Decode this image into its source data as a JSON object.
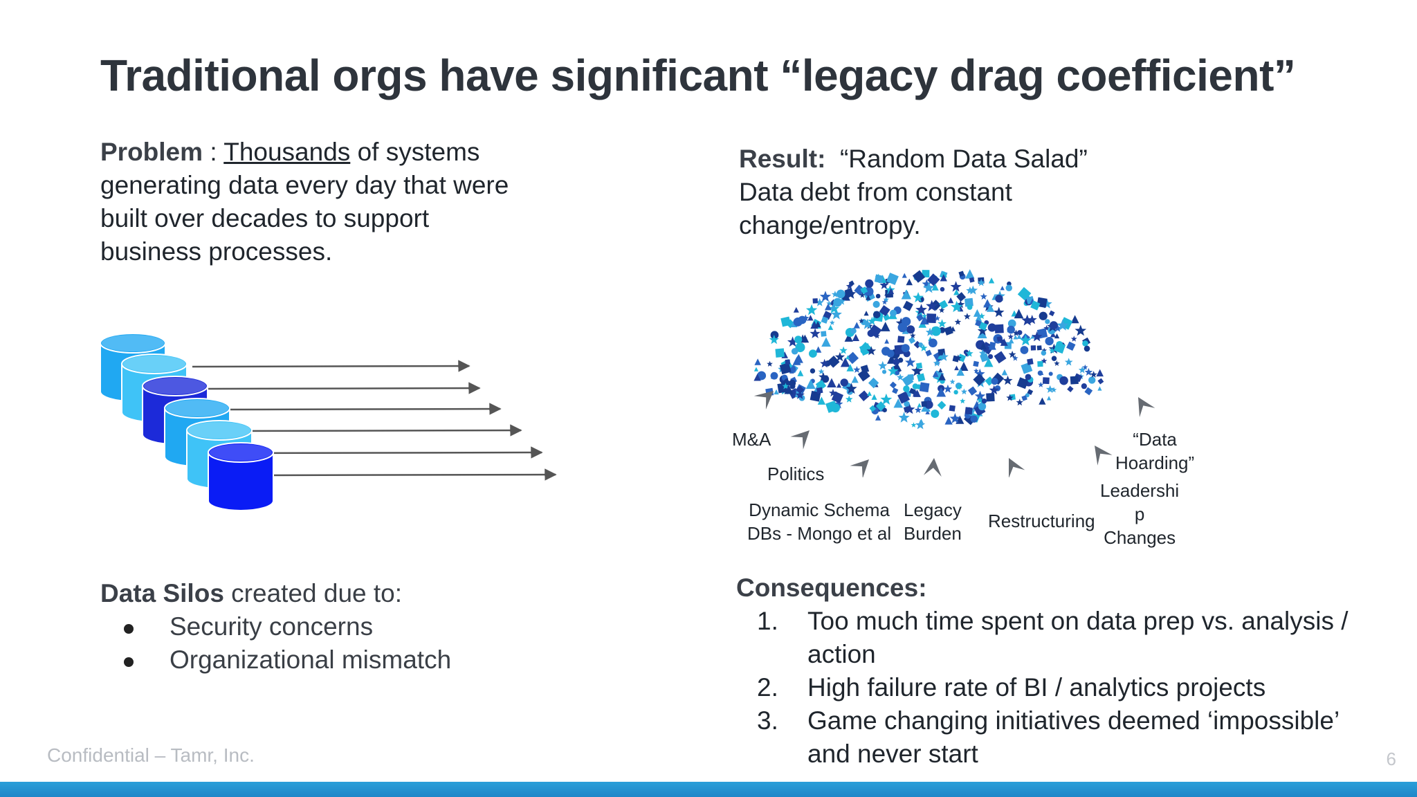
{
  "title": "Traditional orgs have significant “legacy drag coefficient”",
  "problem": {
    "label": "Problem",
    "sep": " : ",
    "highlight": "Thousands",
    "text": " of systems generating data every day that were built over decades to support business processes."
  },
  "result": {
    "label": "Result:",
    "quote": "“Random Data Salad”",
    "text": "Data debt from constant change/entropy."
  },
  "silos": {
    "label": "Data Silos",
    "text": " created due to:",
    "items": [
      "Security concerns",
      "Organizational mismatch"
    ]
  },
  "consequences": {
    "heading": "Consequences:",
    "items": [
      {
        "num": "1.",
        "text": "Too much time spent on data prep vs. analysis / action"
      },
      {
        "num": "2.",
        "text": "High failure rate of BI / analytics projects"
      },
      {
        "num": "3.",
        "text": "Game changing initiatives deemed ‘impossible’ and never start"
      }
    ]
  },
  "diagram_labels": {
    "ma": "M&A",
    "politics": "Politics",
    "dynamic_schema_1": "Dynamic Schema",
    "dynamic_schema_2": "DBs - Mongo et al",
    "legacy_1": "Legacy",
    "legacy_2": "Burden",
    "restructuring": "Restructuring",
    "leadership_1": "Leadershi",
    "leadership_2": "p",
    "leadership_3": "Changes",
    "hoarding_1": "“Data",
    "hoarding_2": "Hoarding”"
  },
  "colors": {
    "db_light": "#3fc3f7",
    "db_medium": "#20a8f2",
    "db_dark": "#1c2ad9",
    "db_royal": "#0a1cf5",
    "salad": [
      "#1f3e9c",
      "#2a64c2",
      "#1fb7d8",
      "#3aa6e0",
      "#163b8f"
    ],
    "arrow_gray": "#666b72",
    "bar": "#1f86c8"
  },
  "footer": {
    "left": "Confidential – Tamr, Inc.",
    "page": "6"
  }
}
